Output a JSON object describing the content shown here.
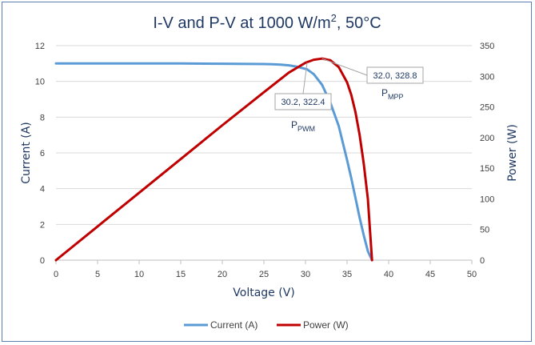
{
  "chart_data": {
    "type": "line",
    "title": "I-V and P-V at 1000 W/m², 50°C",
    "title_parts": {
      "main": "I-V and P-V at 1000 W/m",
      "sup": "2",
      "tail": ", 50°C"
    },
    "xlabel": "Voltage (V)",
    "ylabel_left": "Current (A)",
    "ylabel_right": "Power (W)",
    "xlim": [
      0,
      50
    ],
    "ylim_left": [
      0,
      12
    ],
    "ylim_right": [
      0,
      350
    ],
    "x_ticks": [
      "0",
      "5",
      "10",
      "15",
      "20",
      "25",
      "30",
      "35",
      "40",
      "45",
      "50"
    ],
    "y_left_ticks": [
      "0",
      "2",
      "4",
      "6",
      "8",
      "10",
      "12"
    ],
    "y_right_ticks": [
      "0",
      "50",
      "100",
      "150",
      "200",
      "250",
      "300",
      "350"
    ],
    "grid": "horizontal",
    "legend_position": "bottom",
    "series": [
      {
        "name": "Current (A)",
        "axis": "left",
        "color": "#5b9bd5",
        "x": [
          0,
          5,
          10,
          15,
          20,
          25,
          26,
          27,
          28,
          29,
          30,
          30.2,
          31,
          32,
          33,
          34,
          35,
          35.5,
          36,
          36.5,
          37,
          37.5,
          38
        ],
        "y": [
          11.0,
          11.0,
          11.0,
          11.0,
          10.99,
          10.97,
          10.96,
          10.94,
          10.9,
          10.82,
          10.7,
          10.67,
          10.4,
          9.8,
          8.8,
          7.5,
          5.6,
          4.6,
          3.5,
          2.4,
          1.4,
          0.5,
          0
        ]
      },
      {
        "name": "Power (W)",
        "axis": "right",
        "color": "#c00000",
        "x": [
          0,
          5,
          10,
          15,
          20,
          25,
          28,
          30,
          31,
          32,
          33,
          34,
          35,
          35.5,
          36,
          36.5,
          37,
          37.5,
          38
        ],
        "y": [
          0,
          55,
          110,
          165,
          220,
          274,
          306,
          322,
          327,
          328.8,
          326,
          315,
          290,
          270,
          242,
          205,
          158,
          100,
          0
        ]
      }
    ],
    "annotations": [
      {
        "x": 30.2,
        "y": 322.4,
        "text": "30.2, 322.4",
        "label_main": "P",
        "label_sub": "PWM"
      },
      {
        "x": 32.0,
        "y": 328.8,
        "text": "32.0, 328.8",
        "label_main": "P",
        "label_sub": "MPP"
      }
    ]
  }
}
